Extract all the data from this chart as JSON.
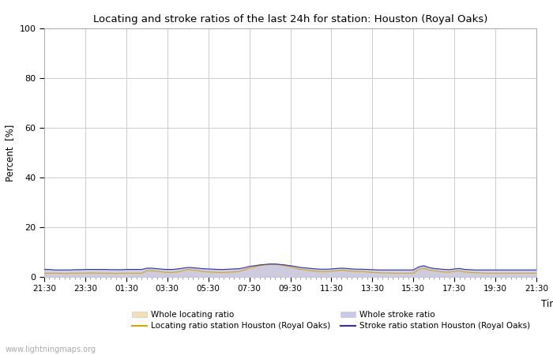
{
  "title": "Locating and stroke ratios of the last 24h for station: Houston (Royal Oaks)",
  "xlabel": "Time",
  "ylabel": "Percent  [%]",
  "ylim": [
    0,
    100
  ],
  "yticks": [
    0,
    20,
    40,
    60,
    80,
    100
  ],
  "x_labels": [
    "21:30",
    "23:30",
    "01:30",
    "03:30",
    "05:30",
    "07:30",
    "09:30",
    "11:30",
    "13:30",
    "15:30",
    "17:30",
    "19:30",
    "21:30"
  ],
  "n_points": 97,
  "whole_locating_fill_color": "#f5deb3",
  "whole_stroke_fill_color": "#c8c8e8",
  "locating_line_color": "#d4a800",
  "stroke_line_color": "#3030c0",
  "background_color": "#ffffff",
  "grid_color": "#cccccc",
  "watermark": "www.lightningmaps.org",
  "locating_ratio_values": [
    1.5,
    1.5,
    1.5,
    1.5,
    1.4,
    1.5,
    1.5,
    1.5,
    1.5,
    1.6,
    1.6,
    1.5,
    1.5,
    1.5,
    1.4,
    1.5,
    1.5,
    1.5,
    1.5,
    1.5,
    2.5,
    2.5,
    2.3,
    2.0,
    1.8,
    1.8,
    2.0,
    2.5,
    3.0,
    2.8,
    2.5,
    2.2,
    2.0,
    1.9,
    1.8,
    1.8,
    1.9,
    2.0,
    2.2,
    2.8,
    3.5,
    4.0,
    4.5,
    4.8,
    5.0,
    5.0,
    4.8,
    4.5,
    4.0,
    3.5,
    3.0,
    2.8,
    2.5,
    2.3,
    2.2,
    2.2,
    2.3,
    2.5,
    2.7,
    2.5,
    2.3,
    2.2,
    2.2,
    2.0,
    1.8,
    1.7,
    1.6,
    1.6,
    1.5,
    1.5,
    1.5,
    1.5,
    1.5,
    3.0,
    3.5,
    2.8,
    2.5,
    2.2,
    2.0,
    1.9,
    2.3,
    2.5,
    2.0,
    1.8,
    1.7,
    1.6,
    1.5,
    1.5,
    1.5,
    1.5,
    1.5,
    1.5,
    1.5,
    1.5,
    1.5,
    1.5,
    1.5
  ],
  "stroke_ratio_values": [
    3.0,
    3.0,
    2.8,
    2.8,
    2.8,
    2.8,
    2.9,
    2.9,
    3.0,
    3.0,
    3.0,
    3.0,
    3.0,
    2.9,
    2.9,
    2.9,
    3.0,
    3.0,
    3.0,
    3.0,
    3.5,
    3.5,
    3.3,
    3.1,
    3.0,
    3.0,
    3.2,
    3.5,
    3.8,
    3.7,
    3.5,
    3.3,
    3.2,
    3.1,
    3.0,
    3.0,
    3.1,
    3.2,
    3.3,
    3.7,
    4.2,
    4.5,
    4.8,
    5.0,
    5.2,
    5.2,
    5.0,
    4.8,
    4.5,
    4.2,
    3.8,
    3.6,
    3.4,
    3.2,
    3.1,
    3.1,
    3.2,
    3.4,
    3.5,
    3.4,
    3.2,
    3.1,
    3.1,
    3.0,
    2.9,
    2.8,
    2.8,
    2.8,
    2.8,
    2.8,
    2.8,
    2.8,
    2.8,
    4.0,
    4.5,
    3.8,
    3.4,
    3.2,
    3.0,
    2.9,
    3.2,
    3.4,
    3.0,
    2.9,
    2.8,
    2.8,
    2.8,
    2.8,
    2.8,
    2.8,
    2.8,
    2.8,
    2.8,
    2.8,
    2.8,
    2.8,
    2.8
  ]
}
